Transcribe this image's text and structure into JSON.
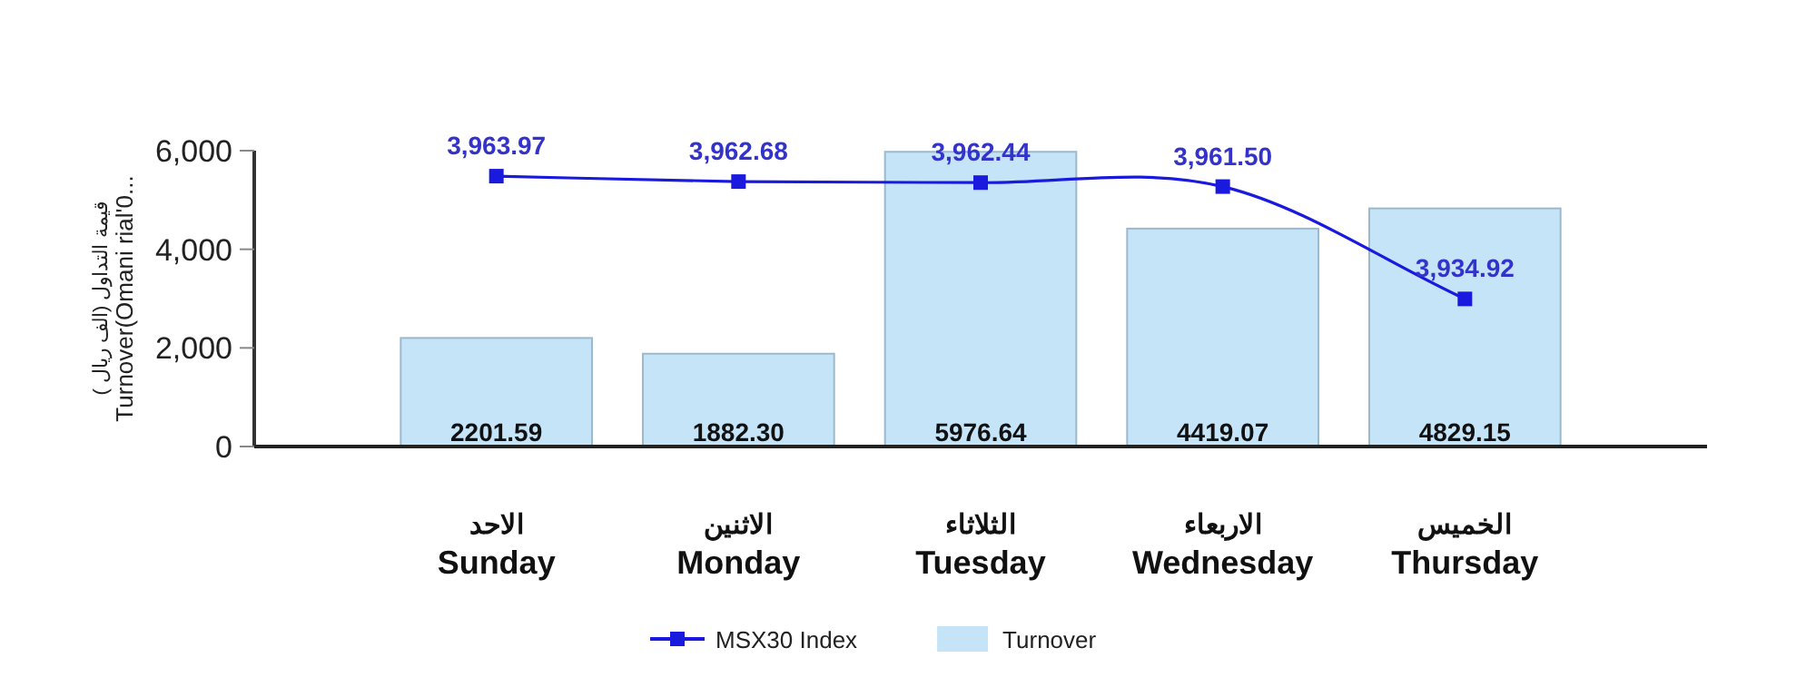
{
  "chart_data": {
    "type": "bar",
    "ylabel": "( قيمة التداول (الف ريال\nTurnover(Omani rial'0...",
    "categories": [
      "الاحد\nSunday",
      "الاثنين\nMonday",
      "الثلاثاء\nTuesday",
      "الاربعاء\nWednesday",
      "الخميس\nThursday"
    ],
    "series": [
      {
        "name": "MSX30 Index",
        "type": "line",
        "axis": "y2",
        "color": "#1a1adf",
        "marker": "square",
        "values": [
          3963.97,
          3962.68,
          3962.44,
          3961.5,
          3934.92
        ],
        "value_labels": [
          "3,963.97",
          "3,962.68",
          "3,962.44",
          "3,961.50",
          "3,934.92"
        ]
      },
      {
        "name": "Turnover",
        "color": "#c6e4f8",
        "values": [
          2201.59,
          1882.3,
          5976.64,
          4419.07,
          4829.15
        ],
        "value_labels": [
          "2201.59",
          "1882.30",
          "5976.64",
          "4419.07",
          "4829.15"
        ]
      }
    ],
    "ylim": [
      0,
      6000
    ],
    "yticks": [
      {
        "value": 0,
        "label": "0"
      },
      {
        "value": 2000,
        "label": "2,000"
      },
      {
        "value": 4000,
        "label": "4,000"
      },
      {
        "value": 6000,
        "label": "6,000"
      }
    ],
    "y2lim": [
      3900,
      3970
    ],
    "legend": "bottom",
    "grid": false
  }
}
